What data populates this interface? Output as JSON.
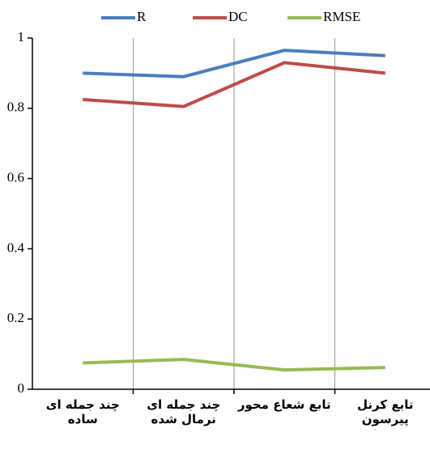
{
  "chart_data": {
    "type": "line",
    "categories": [
      "چند جمله ای ساده",
      "چند جمله ای نرمال شده",
      "تابع شعاع محور",
      "تابع کرنل پیرسون"
    ],
    "series": [
      {
        "name": "R",
        "color": "#4a7ebb",
        "values": [
          0.9,
          0.89,
          0.965,
          0.95
        ]
      },
      {
        "name": "DC",
        "color": "#be4b48",
        "values": [
          0.825,
          0.805,
          0.93,
          0.9
        ]
      },
      {
        "name": "RMSE",
        "color": "#98b954",
        "values": [
          0.075,
          0.085,
          0.055,
          0.062
        ]
      }
    ],
    "ylim": [
      0,
      1
    ],
    "yticks": [
      0,
      0.2,
      0.4,
      0.6,
      0.8,
      1
    ],
    "legend": "top"
  }
}
